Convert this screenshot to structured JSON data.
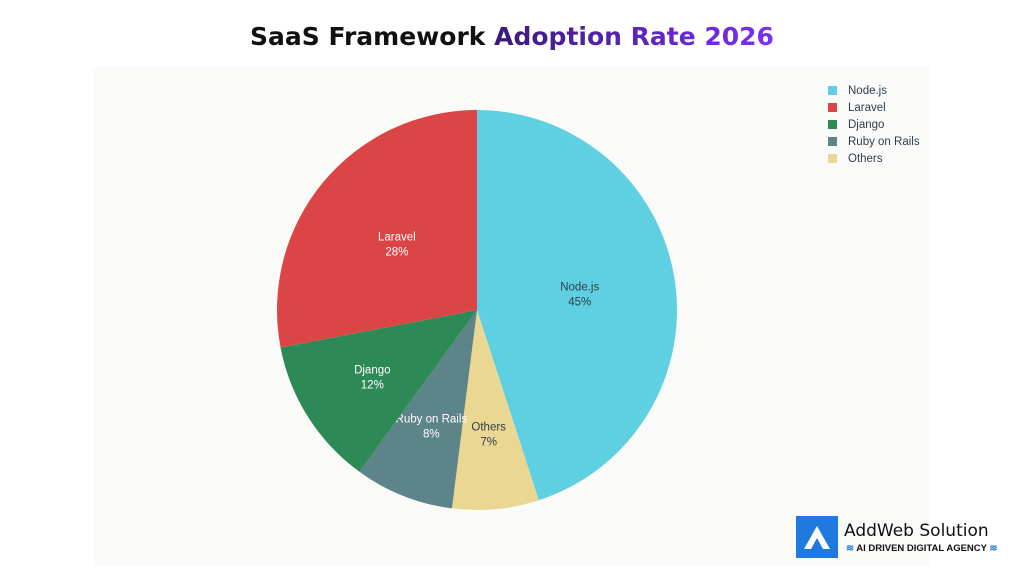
{
  "chart_data": {
    "type": "pie",
    "title_part1": "SaaS Framework",
    "title_part2": "Adoption Rate 2026",
    "legend_position": "top-right",
    "slices": [
      {
        "label": "Node.js",
        "value": 45,
        "display": "45%",
        "color": "#5ed0e2",
        "text_color": "#2f3f4a"
      },
      {
        "label": "Others",
        "value": 7,
        "display": "7%",
        "color": "#ead892",
        "text_color": "#2f3f4a"
      },
      {
        "label": "Ruby on Rails",
        "value": 8,
        "display": "8%",
        "color": "#5c8489",
        "text_color": "#ffffff"
      },
      {
        "label": "Django",
        "value": 12,
        "display": "12%",
        "color": "#2d8a57",
        "text_color": "#ffffff"
      },
      {
        "label": "Laravel",
        "value": 28,
        "display": "28%",
        "color": "#db4545",
        "text_color": "#ffffff"
      }
    ],
    "legend": [
      "Node.js",
      "Laravel",
      "Django",
      "Ruby on Rails",
      "Others"
    ]
  },
  "logo": {
    "name": "AddWeb Solution",
    "tagline": "AI DRIVEN DIGITAL AGENCY",
    "color": "#1f7ae0"
  }
}
